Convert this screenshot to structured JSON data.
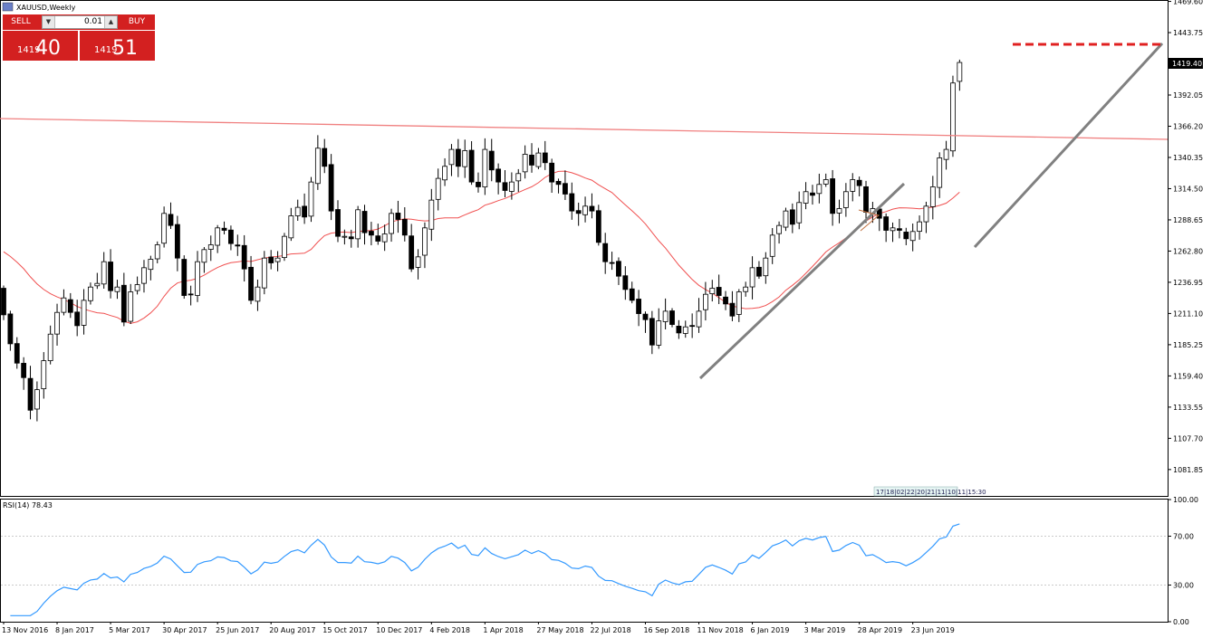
{
  "symbol_title": "XAUUSD,Weekly",
  "trade_panel": {
    "sell_label": "SELL",
    "buy_label": "BUY",
    "lot_value": "0.01",
    "sell_price_small": "1419",
    "sell_price_big": "40",
    "buy_price_small": "1419",
    "buy_price_big": "51"
  },
  "colors": {
    "ma_line": "#f05050",
    "resistance_line": "#f08080",
    "target_line": "#e02020",
    "trendline": "#808080",
    "rsi_line": "#3399ff",
    "price_label_bg": "#000000"
  },
  "timebox_text": "17|18|02|22|20|21|11|10|11|15:30",
  "chart_data": [
    {
      "type": "candlestick",
      "title": "XAUUSD,Weekly",
      "ylim": [
        1060,
        1470
      ],
      "y_ticks": [
        "1469.60",
        "1443.75",
        "1419.40",
        "1392.05",
        "1366.20",
        "1340.35",
        "1314.50",
        "1288.65",
        "1262.80",
        "1236.95",
        "1211.10",
        "1185.25",
        "1159.40",
        "1133.55",
        "1107.70",
        "1081.85"
      ],
      "current_price": 1419.4,
      "x_labels": [
        "13 Nov 2016",
        "8 Jan 2017",
        "5 Mar 2017",
        "30 Apr 2017",
        "25 Jun 2017",
        "20 Aug 2017",
        "15 Oct 2017",
        "10 Dec 2017",
        "4 Feb 2018",
        "1 Apr 2018",
        "27 May 2018",
        "22 Jul 2018",
        "16 Sep 2018",
        "11 Nov 2018",
        "6 Jan 2019",
        "3 Mar 2019",
        "28 Apr 2019",
        "23 Jun 2019"
      ],
      "closes": [
        1210,
        1186,
        1170,
        1158,
        1131,
        1148,
        1172,
        1194,
        1212,
        1224,
        1212,
        1201,
        1222,
        1233,
        1236,
        1254,
        1230,
        1233,
        1204,
        1229,
        1235,
        1249,
        1256,
        1268,
        1294,
        1284,
        1257,
        1226,
        1227,
        1254,
        1264,
        1268,
        1282,
        1280,
        1269,
        1267,
        1248,
        1222,
        1233,
        1257,
        1253,
        1257,
        1275,
        1292,
        1299,
        1291,
        1320,
        1348,
        1333,
        1296,
        1275,
        1275,
        1273,
        1297,
        1278,
        1276,
        1271,
        1277,
        1294,
        1289,
        1276,
        1248,
        1258,
        1282,
        1305,
        1323,
        1333,
        1347,
        1333,
        1346,
        1320,
        1316,
        1347,
        1330,
        1320,
        1313,
        1320,
        1327,
        1343,
        1334,
        1344,
        1336,
        1320,
        1318,
        1310,
        1296,
        1294,
        1300,
        1296,
        1270,
        1254,
        1253,
        1242,
        1231,
        1222,
        1211,
        1206,
        1185,
        1205,
        1213,
        1202,
        1195,
        1200,
        1201,
        1213,
        1227,
        1232,
        1226,
        1219,
        1209,
        1229,
        1233,
        1249,
        1242,
        1257,
        1276,
        1284,
        1296,
        1285,
        1303,
        1312,
        1309,
        1318,
        1322,
        1294,
        1298,
        1312,
        1322,
        1317,
        1295,
        1298,
        1290,
        1280,
        1282,
        1280,
        1273,
        1279,
        1287,
        1300,
        1316,
        1340,
        1347,
        1402,
        1419
      ],
      "moving_average_period": 20,
      "annotations": [
        "horizontal resistance line",
        "upward trendlines",
        "dashed target line near 1437",
        "price label 1419.40"
      ]
    },
    {
      "type": "line",
      "title": "RSI(14) 78.43",
      "ylim": [
        0,
        100
      ],
      "y_ticks": [
        "100.00",
        "70.00",
        "30.00",
        "0.00"
      ],
      "levels": [
        70,
        30
      ],
      "current_value": 78.43
    }
  ]
}
